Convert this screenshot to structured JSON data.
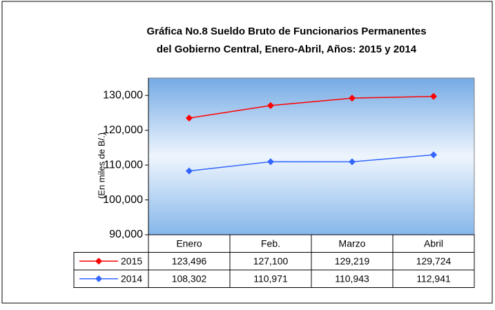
{
  "chart_data": {
    "type": "line",
    "title": [
      "Gráfica No.8 Sueldo Bruto de Funcionarios Permanentes",
      "del Gobierno Central, Enero-Abril, Años: 2015 y 2014"
    ],
    "y_label": "(En miles de B/.)",
    "categories": [
      "Enero",
      "Feb.",
      "Marzo",
      "Abril"
    ],
    "series": [
      {
        "name": "2015",
        "color": "#ff0000",
        "values": [
          123496,
          127100,
          129219,
          129724
        ],
        "value_labels": [
          "123,496",
          "127,100",
          "129,219",
          "129,724"
        ]
      },
      {
        "name": "2014",
        "color": "#3366ff",
        "values": [
          108302,
          110971,
          110943,
          112941
        ],
        "value_labels": [
          "108,302",
          "110,971",
          "110,943",
          "112,941"
        ]
      }
    ],
    "ylim": [
      90000,
      135000
    ],
    "yticks": [
      {
        "value": 90000,
        "label": "90,000"
      },
      {
        "value": 100000,
        "label": "100,000"
      },
      {
        "value": 110000,
        "label": "110,000"
      },
      {
        "value": 120000,
        "label": "120,000"
      },
      {
        "value": 130000,
        "label": "130,000"
      }
    ],
    "grid": false
  }
}
